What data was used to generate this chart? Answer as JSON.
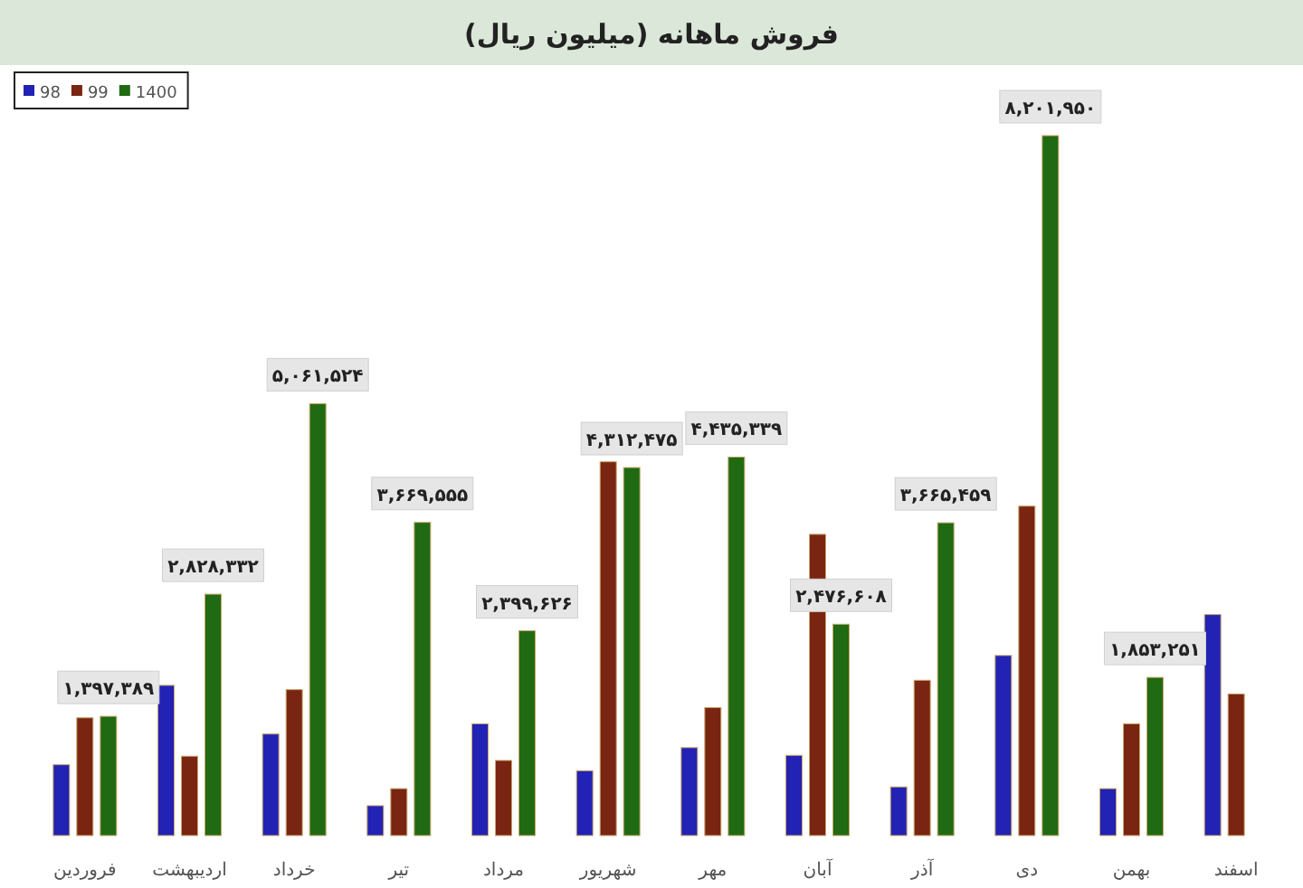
{
  "chart_data": {
    "type": "bar",
    "title": "فروش ماهانه (میلیون ریال)",
    "categories": [
      "فروردین",
      "اردیبهشت",
      "خرداد",
      "تیر",
      "مرداد",
      "شهریور",
      "مهر",
      "آبان",
      "آذر",
      "دی",
      "بهمن",
      "اسفند"
    ],
    "series": [
      {
        "name": "98",
        "color": "#2222b4",
        "values": [
          830000,
          1760000,
          1190000,
          350000,
          1310000,
          760000,
          1030000,
          940000,
          570000,
          2110000,
          550000,
          2590000
        ]
      },
      {
        "name": "99",
        "color": "#7a2412",
        "values": [
          1380000,
          930000,
          1710000,
          550000,
          880000,
          4380000,
          1500000,
          3530000,
          1820000,
          3860000,
          1310000,
          1660000
        ]
      },
      {
        "name": "1400",
        "color": "#1f6a12",
        "values": [
          1397389,
          2828332,
          5061524,
          3669555,
          2399626,
          4312475,
          4435339,
          2476608,
          3665459,
          8201950,
          1853251,
          null
        ],
        "value_labels": [
          "۱,۳۹۷,۳۸۹",
          "۲,۸۲۸,۳۳۲",
          "۵,۰۶۱,۵۲۴",
          "۳,۶۶۹,۵۵۵",
          "۲,۳۹۹,۶۲۶",
          "۴,۳۱۲,۴۷۵",
          "۴,۴۳۵,۳۳۹",
          "۲,۴۷۶,۶۰۸",
          "۳,۶۶۵,۴۵۹",
          "۸,۲۰۱,۹۵۰",
          "۱,۸۵۳,۲۵۱",
          null
        ]
      }
    ],
    "legend": "top left"
  }
}
